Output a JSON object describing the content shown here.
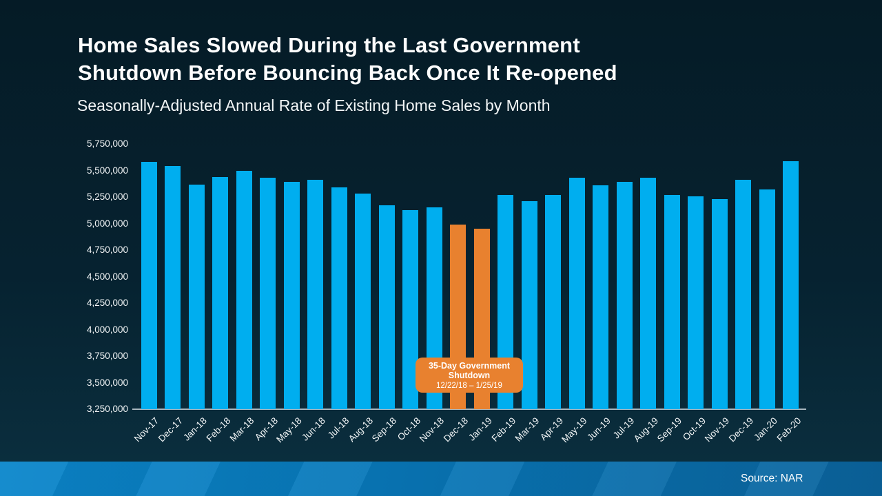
{
  "title": "Home Sales Slowed During the Last Government\nShutdown Before Bouncing Back Once It Re-opened",
  "subtitle": "Seasonally-Adjusted Annual Rate of Existing Home Sales by Month",
  "source": "Source: NAR",
  "colors": {
    "bar_blue": "#00AEEF",
    "bar_orange": "#E8812F",
    "axis_line": "#A9B7BF",
    "background_top": "#051B26",
    "background_bottom": "#0B3040",
    "footer_blue_left": "#0A86CB",
    "footer_blue_right": "#0A639C",
    "text": "#FFFFFF"
  },
  "chart_data": {
    "type": "bar",
    "title": "Home Sales Slowed During the Last Government Shutdown Before Bouncing Back Once It Re-opened",
    "subtitle": "Seasonally-Adjusted Annual Rate of Existing Home Sales by Month",
    "xlabel": "",
    "ylabel": "",
    "grid": false,
    "legend": false,
    "ylim": [
      3250000,
      5750000
    ],
    "ytick_step": 250000,
    "ytick_labels": [
      "3,250,000",
      "3,500,000",
      "3,750,000",
      "4,000,000",
      "4,250,000",
      "4,500,000",
      "4,750,000",
      "5,000,000",
      "5,250,000",
      "5,500,000",
      "5,750,000"
    ],
    "categories": [
      "Nov-17",
      "Dec-17",
      "Jan-18",
      "Feb-18",
      "Mar-18",
      "Apr-18",
      "May-18",
      "Jun-18",
      "Jul-18",
      "Aug-18",
      "Sep-18",
      "Oct-18",
      "Nov-18",
      "Dec-18",
      "Jan-19",
      "Feb-19",
      "Mar-19",
      "Apr-19",
      "May-19",
      "Jun-19",
      "Jul-19",
      "Aug-19",
      "Sep-19",
      "Oct-19",
      "Nov-19",
      "Dec-19",
      "Jan-20",
      "Feb-20"
    ],
    "values": [
      5580000,
      5540000,
      5370000,
      5440000,
      5500000,
      5430000,
      5390000,
      5410000,
      5340000,
      5280000,
      5170000,
      5130000,
      5150000,
      4990000,
      4950000,
      5270000,
      5210000,
      5270000,
      5430000,
      5360000,
      5390000,
      5430000,
      5270000,
      5260000,
      5230000,
      5410000,
      5320000,
      5590000
    ],
    "highlight_indices": [
      13,
      14
    ],
    "highlight_meaning": "Months affected by the 35-day government shutdown (shown in orange)",
    "annotation": {
      "line1": "35-Day Government",
      "line2": "Shutdown",
      "line3": "12/22/18 – 1/25/19"
    }
  }
}
